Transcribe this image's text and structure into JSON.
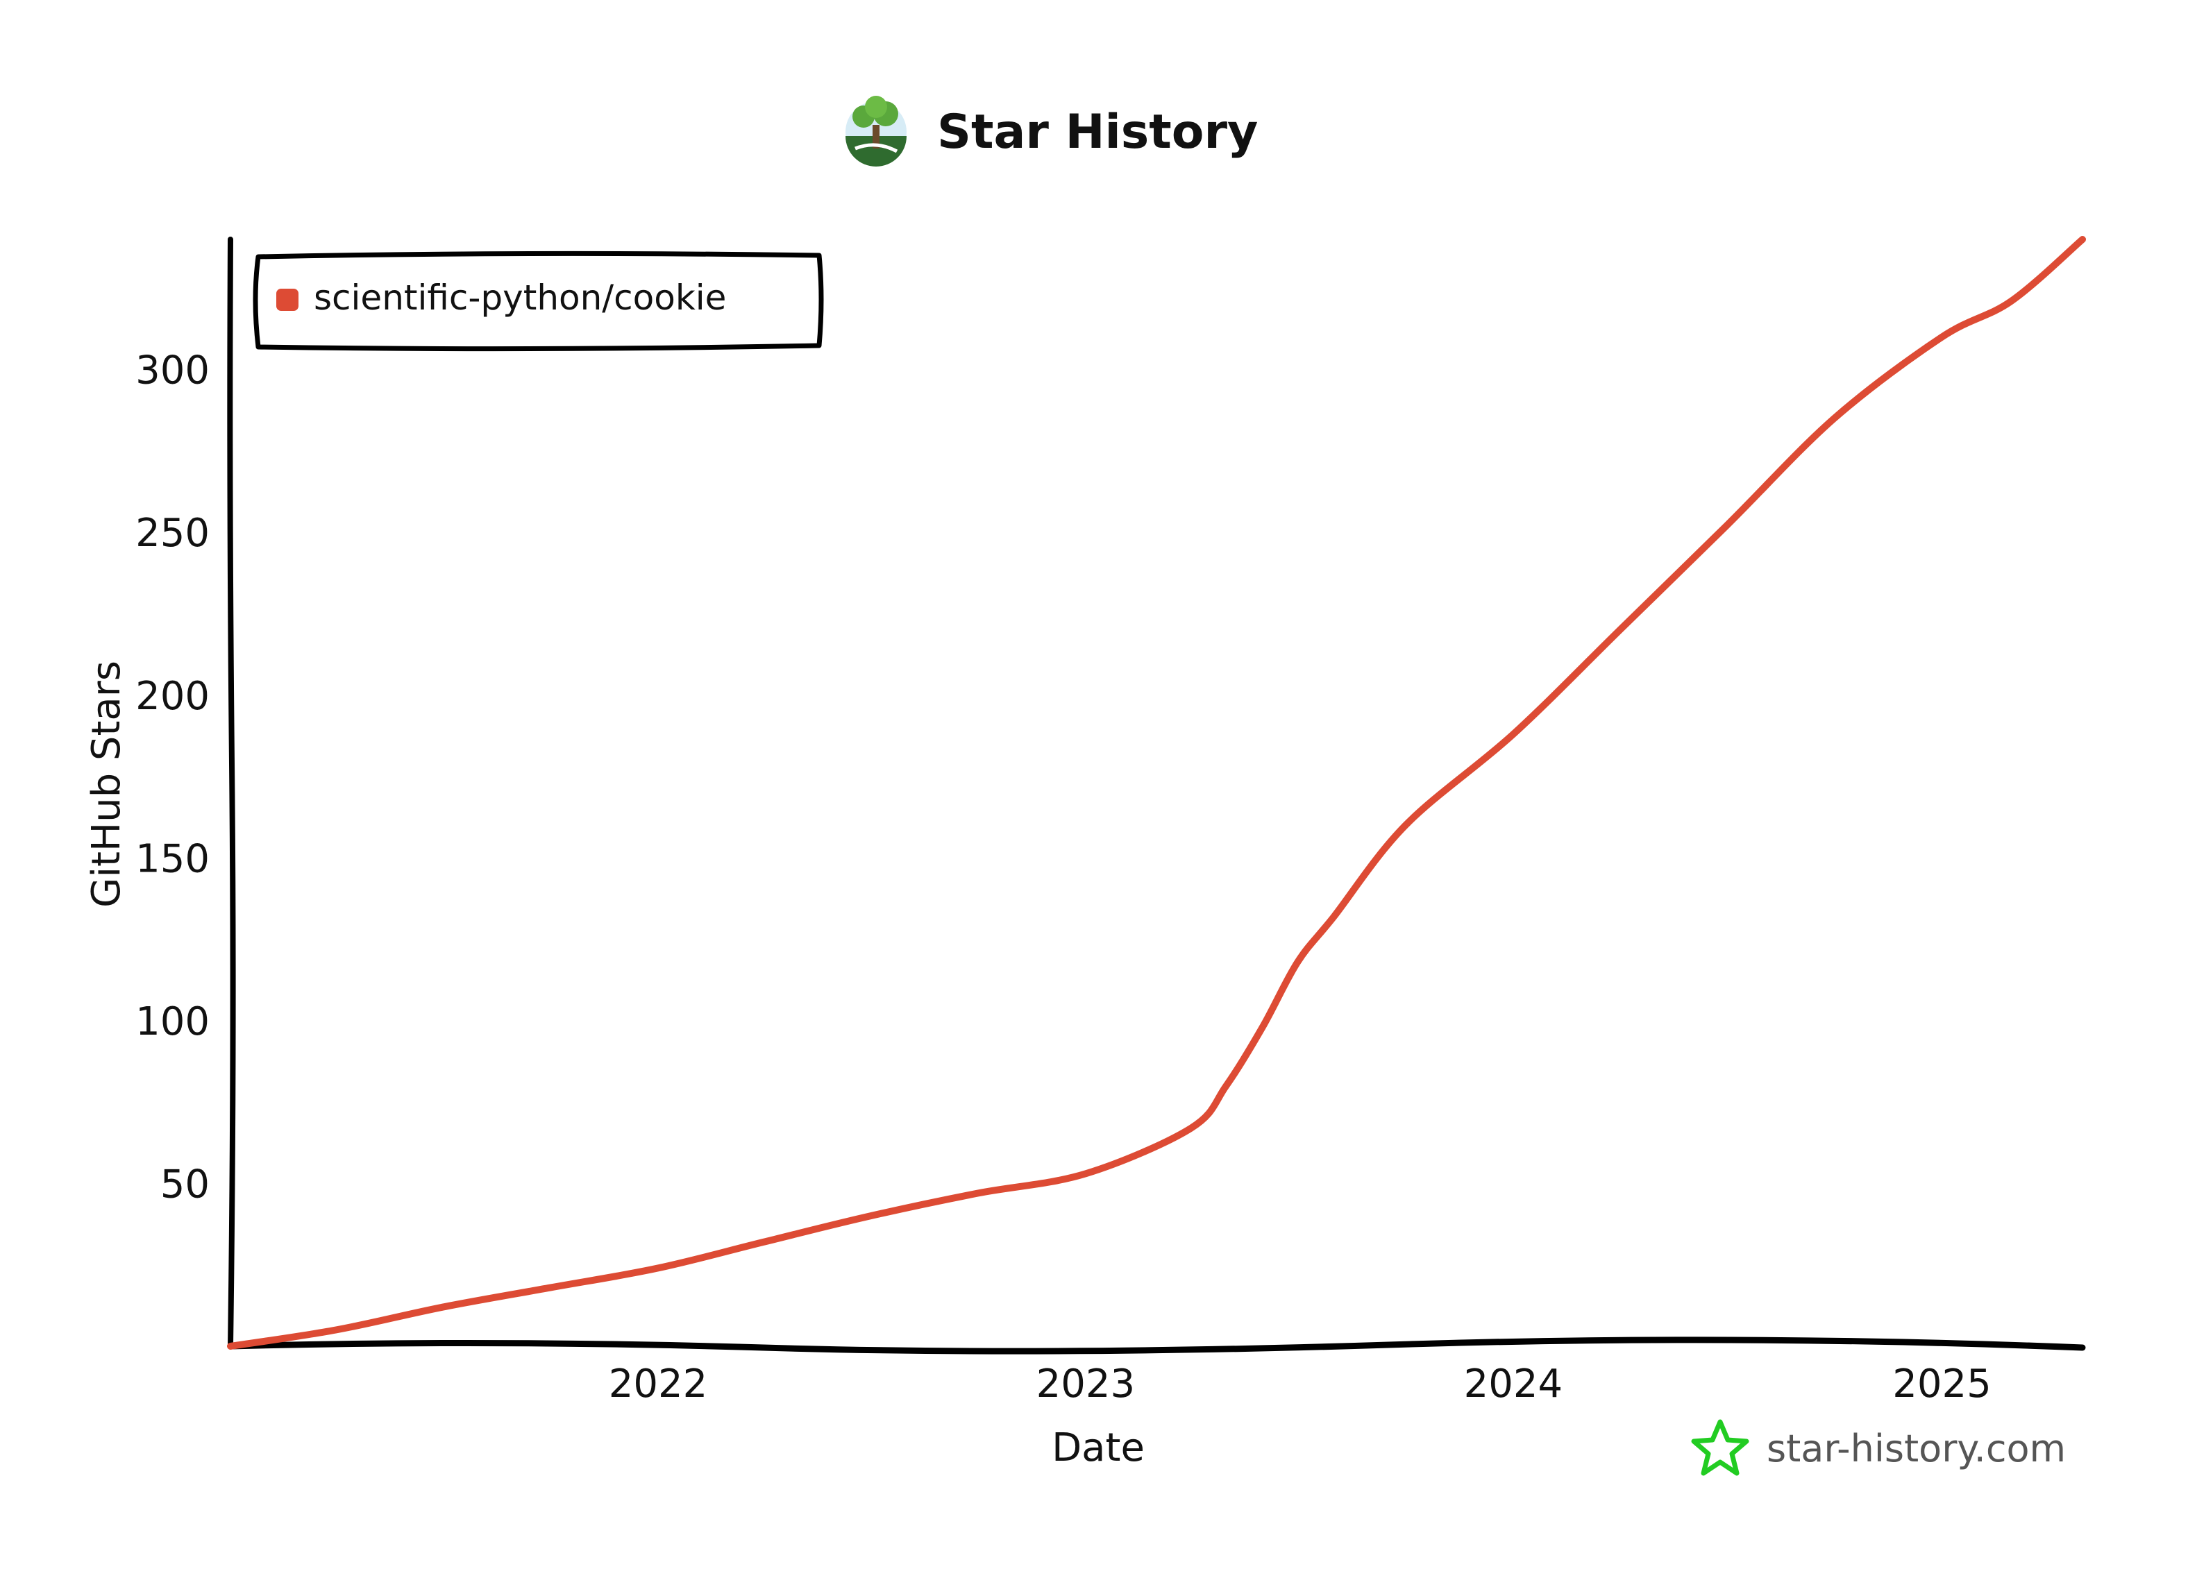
{
  "chart_data": {
    "type": "line",
    "title": "Star History",
    "xlabel": "Date",
    "ylabel": "GitHub Stars",
    "x_ticks": [
      "2022",
      "2023",
      "2024",
      "2025"
    ],
    "y_ticks": [
      50,
      100,
      150,
      200,
      250,
      300
    ],
    "ylim": [
      0,
      340
    ],
    "legend_position": "top-left",
    "grid": false,
    "series": [
      {
        "name": "scientific-python/cookie",
        "color": "#dd4b34",
        "points": [
          [
            "2021-01-01",
            0
          ],
          [
            "2021-04-01",
            5
          ],
          [
            "2021-07-01",
            12
          ],
          [
            "2021-10-01",
            18
          ],
          [
            "2022-01-01",
            24
          ],
          [
            "2022-04-01",
            32
          ],
          [
            "2022-07-01",
            40
          ],
          [
            "2022-10-01",
            47
          ],
          [
            "2023-01-01",
            53
          ],
          [
            "2023-04-01",
            67
          ],
          [
            "2023-05-01",
            80
          ],
          [
            "2023-06-01",
            98
          ],
          [
            "2023-07-01",
            118
          ],
          [
            "2023-08-01",
            132
          ],
          [
            "2023-10-01",
            160
          ],
          [
            "2024-01-01",
            188
          ],
          [
            "2024-04-01",
            220
          ],
          [
            "2024-07-01",
            252
          ],
          [
            "2024-10-01",
            285
          ],
          [
            "2025-01-01",
            310
          ],
          [
            "2025-03-01",
            321
          ],
          [
            "2025-05-01",
            340
          ]
        ]
      }
    ]
  },
  "watermark": {
    "text": "star-history.com",
    "icon": "star-outline-icon",
    "color": "#22cc22"
  },
  "title_icon": "tree-logo-icon"
}
